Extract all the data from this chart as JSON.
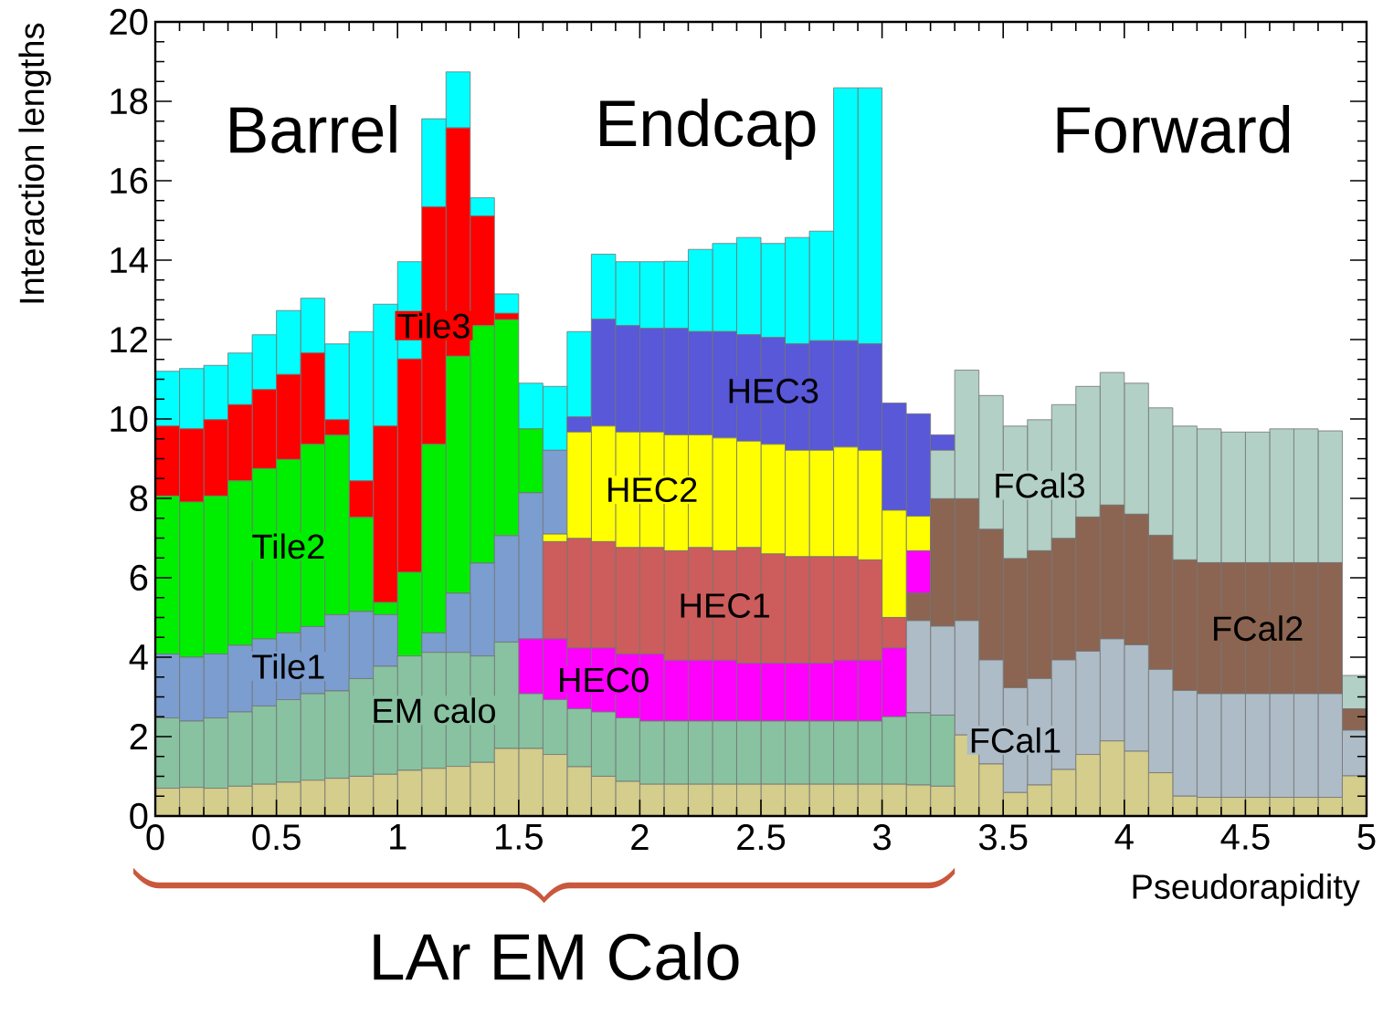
{
  "chart_data": {
    "type": "bar",
    "stacked": true,
    "xlabel": "Pseudorapidity",
    "ylabel": "Interaction lengths",
    "annotations": [
      "Barrel",
      "Endcap",
      "Forward",
      "LAr EM Calo"
    ],
    "xlim": [
      0,
      5
    ],
    "ylim": [
      0,
      20
    ],
    "xticks": [
      0,
      0.5,
      1,
      1.5,
      2,
      2.5,
      3,
      3.5,
      4,
      4.5,
      5
    ],
    "yticks": [
      0,
      2,
      4,
      6,
      8,
      10,
      12,
      14,
      16,
      18,
      20
    ],
    "x": [
      0.05,
      0.15,
      0.25,
      0.35,
      0.45,
      0.55,
      0.65,
      0.75,
      0.85,
      0.95,
      1.05,
      1.15,
      1.25,
      1.35,
      1.45,
      1.55,
      1.65,
      1.75,
      1.85,
      1.95,
      2.05,
      2.15,
      2.25,
      2.35,
      2.45,
      2.55,
      2.65,
      2.75,
      2.85,
      2.95,
      3.05,
      3.15,
      3.25,
      3.35,
      3.45,
      3.55,
      3.65,
      3.75,
      3.85,
      3.95,
      4.05,
      4.15,
      4.25,
      4.35,
      4.45,
      4.55,
      4.65,
      4.75,
      4.85,
      4.95
    ],
    "series": [
      {
        "color": "#d4cd8b",
        "values": [
          0.7,
          0.72,
          0.7,
          0.75,
          0.8,
          0.85,
          0.9,
          0.95,
          1.0,
          1.05,
          1.15,
          1.2,
          1.25,
          1.35,
          1.7,
          1.7,
          1.55,
          1.24,
          1.0,
          0.87,
          0.8,
          0.8,
          0.8,
          0.8,
          0.8,
          0.8,
          0.8,
          0.8,
          0.8,
          0.8,
          0.8,
          0.78,
          0.75,
          2.04,
          1.31,
          0.59,
          0.78,
          1.17,
          1.55,
          1.89,
          1.63,
          1.09,
          0.5,
          0.47,
          0.47,
          0.47,
          0.47,
          0.47,
          0.47,
          1.01
        ]
      },
      {
        "name": "EM calo",
        "color": "#88c2a1",
        "values": [
          1.77,
          1.67,
          1.77,
          1.87,
          1.97,
          2.08,
          2.18,
          2.2,
          2.46,
          2.72,
          2.88,
          2.92,
          2.87,
          2.68,
          2.68,
          1.38,
          1.38,
          1.46,
          1.62,
          1.6,
          1.59,
          1.59,
          1.59,
          1.59,
          1.59,
          1.59,
          1.59,
          1.59,
          1.59,
          1.59,
          1.7,
          1.82,
          1.79,
          0,
          0,
          0,
          0,
          0,
          0,
          0,
          0,
          0,
          0,
          0,
          0,
          0,
          0,
          0,
          0,
          0
        ]
      },
      {
        "name": "HEC0",
        "color": "#ff00ff",
        "values": [
          0,
          0,
          0,
          0,
          0,
          0,
          0,
          0,
          0,
          0,
          0,
          0,
          0,
          0,
          0,
          1.38,
          1.53,
          1.53,
          1.61,
          1.61,
          1.69,
          1.53,
          1.53,
          1.53,
          1.46,
          1.46,
          1.46,
          1.46,
          1.53,
          1.53,
          1.73,
          0,
          0,
          0,
          0,
          0,
          0,
          0,
          0,
          0,
          0,
          0,
          0,
          0,
          0,
          0,
          0,
          0,
          0,
          0
        ]
      },
      {
        "name": "HEC1",
        "color": "#cd5c5c",
        "values": [
          0,
          0,
          0,
          0,
          0,
          0,
          0,
          0,
          0,
          0,
          0,
          0,
          0,
          0,
          0,
          0,
          2.45,
          2.76,
          2.68,
          2.68,
          2.68,
          2.76,
          2.84,
          2.76,
          2.91,
          2.75,
          2.68,
          2.68,
          2.61,
          2.53,
          0.77,
          0,
          0,
          0,
          0,
          0,
          0,
          0,
          0,
          0,
          0,
          0,
          0,
          0,
          0,
          0,
          0,
          0,
          0,
          0
        ]
      },
      {
        "name": "HEC2",
        "color": "#ffff00",
        "values": [
          0,
          0,
          0,
          0,
          0,
          0,
          0,
          0,
          0,
          0,
          0,
          0,
          0,
          0,
          0,
          0,
          0.19,
          2.68,
          2.91,
          2.91,
          2.91,
          2.92,
          2.84,
          2.84,
          2.68,
          2.76,
          2.68,
          2.68,
          2.76,
          2.76,
          2.7,
          0,
          0,
          0,
          0,
          0,
          0,
          0,
          0,
          0,
          0,
          0,
          0,
          0,
          0,
          0,
          0,
          0,
          0,
          0
        ]
      },
      {
        "name": "Tile1",
        "color": "#7b9dd0",
        "values": [
          1.61,
          1.61,
          1.61,
          1.68,
          1.69,
          1.68,
          1.69,
          1.92,
          1.69,
          1.3,
          0,
          0.49,
          1.49,
          2.34,
          2.68,
          3.68,
          2.11,
          0,
          0,
          0,
          0,
          0,
          0,
          0,
          0,
          0,
          0,
          0,
          0,
          0,
          0,
          0,
          0,
          0,
          0,
          0,
          0,
          0,
          0,
          0,
          0,
          0,
          0,
          0,
          0,
          0,
          0,
          0,
          0,
          0
        ]
      },
      {
        "name": "Tile2",
        "color": "#00ee00",
        "values": [
          3.98,
          3.91,
          3.98,
          4.14,
          4.29,
          4.37,
          4.59,
          4.52,
          2.37,
          0.31,
          2.11,
          4.75,
          5.97,
          5.98,
          5.44,
          1.61,
          0,
          0,
          0,
          0,
          0,
          0,
          0,
          0,
          0,
          0,
          0,
          0,
          0,
          0,
          0,
          0,
          0,
          0,
          0,
          0,
          0,
          0,
          0,
          0,
          0,
          0,
          0,
          0,
          0,
          0,
          0,
          0,
          0,
          0
        ]
      },
      {
        "name": "Tile3",
        "color": "#ff0000",
        "values": [
          1.76,
          1.84,
          1.92,
          1.92,
          1.99,
          2.14,
          2.3,
          0.39,
          0.92,
          4.44,
          5.37,
          5.98,
          5.75,
          2.76,
          0.16,
          0,
          0,
          0,
          0,
          0,
          0,
          0,
          0,
          0,
          0,
          0,
          0,
          0,
          0,
          0,
          0,
          0,
          0,
          0,
          0,
          0,
          0,
          0,
          0,
          0,
          0,
          0,
          0,
          0,
          0,
          0,
          0,
          0,
          0,
          0
        ]
      },
      {
        "name": "FCal1",
        "color": "#adbcc7",
        "values": [
          0,
          0,
          0,
          0,
          0,
          0,
          0,
          0,
          0,
          0,
          0,
          0,
          0,
          0,
          0,
          0,
          0,
          0,
          0,
          0,
          0,
          0,
          0,
          0,
          0,
          0,
          0,
          0,
          0,
          0,
          0,
          2.32,
          2.24,
          2.88,
          2.62,
          2.64,
          2.68,
          2.76,
          2.6,
          2.57,
          2.68,
          2.6,
          2.66,
          2.61,
          2.61,
          2.61,
          2.61,
          2.61,
          2.61,
          1.15
        ]
      },
      {
        "name": "FCal2",
        "color": "#8b6552",
        "values": [
          0,
          0,
          0,
          0,
          0,
          0,
          0,
          0,
          0,
          0,
          0,
          0,
          0,
          0,
          0,
          0,
          0,
          0,
          0,
          0,
          0,
          0,
          0,
          0,
          0,
          0,
          0,
          0,
          0,
          0,
          0,
          0.69,
          3.21,
          3.07,
          3.29,
          3.25,
          3.22,
          3.06,
          3.38,
          3.37,
          3.29,
          3.38,
          3.29,
          3.3,
          3.3,
          3.3,
          3.3,
          3.3,
          3.3,
          0.54
        ]
      },
      {
        "name": "FCal3",
        "color": "#b2d0c5",
        "values": [
          0,
          0,
          0,
          0,
          0,
          0,
          0,
          0,
          0,
          0,
          0,
          0,
          0,
          0,
          0,
          0,
          0,
          0,
          0,
          0,
          0,
          0,
          0,
          0,
          0,
          0,
          0,
          0,
          0,
          0,
          0,
          0,
          1.22,
          3.24,
          3.37,
          3.34,
          3.3,
          3.37,
          3.29,
          3.34,
          3.3,
          3.21,
          3.37,
          3.37,
          3.29,
          3.29,
          3.37,
          3.37,
          3.32,
          0.84
        ]
      },
      {
        "color": "#ff00ff",
        "values": [
          0,
          0,
          0,
          0,
          0,
          0,
          0,
          0,
          0,
          0,
          0,
          0,
          0,
          0,
          0,
          0,
          0,
          0,
          0,
          0,
          0,
          0,
          0,
          0,
          0,
          0,
          0,
          0,
          0,
          0,
          0,
          1.07,
          0,
          0,
          0,
          0,
          0,
          0,
          0,
          0,
          0,
          0,
          0,
          0,
          0,
          0,
          0,
          0,
          0,
          0
        ]
      },
      {
        "color": "#ffff00",
        "values": [
          0,
          0,
          0,
          0,
          0,
          0,
          0,
          0,
          0,
          0,
          0,
          0,
          0,
          0,
          0,
          0,
          0,
          0,
          0,
          0,
          0,
          0,
          0,
          0,
          0,
          0,
          0,
          0,
          0,
          0,
          0,
          0.87,
          0,
          0,
          0,
          0,
          0,
          0,
          0,
          0,
          0,
          0,
          0,
          0,
          0,
          0,
          0,
          0,
          0,
          0
        ]
      },
      {
        "name": "HEC3",
        "color": "#5858d8",
        "values": [
          0,
          0,
          0,
          0,
          0,
          0,
          0,
          0,
          0,
          0,
          0,
          0,
          0,
          0,
          0,
          0,
          0,
          0.38,
          2.69,
          2.68,
          2.61,
          2.68,
          2.6,
          2.68,
          2.68,
          2.69,
          2.68,
          2.76,
          2.68,
          2.68,
          2.7,
          2.58,
          0.39,
          0,
          0,
          0,
          0,
          0,
          0,
          0,
          0,
          0,
          0,
          0,
          0,
          0,
          0,
          0,
          0,
          0
        ]
      },
      {
        "color": "#00ffff",
        "values": [
          1.38,
          1.52,
          1.37,
          1.3,
          1.38,
          1.61,
          1.38,
          1.91,
          3.76,
          3.07,
          2.45,
          2.22,
          1.41,
          0.46,
          0.49,
          1.15,
          1.61,
          2.15,
          1.64,
          1.61,
          1.68,
          1.69,
          2.07,
          2.22,
          2.45,
          2.37,
          2.68,
          2.76,
          6.37,
          6.45,
          0,
          0,
          0,
          0,
          0,
          0,
          0,
          0,
          0,
          0,
          0,
          0,
          0,
          0,
          0,
          0,
          0,
          0,
          0,
          0
        ]
      }
    ]
  }
}
